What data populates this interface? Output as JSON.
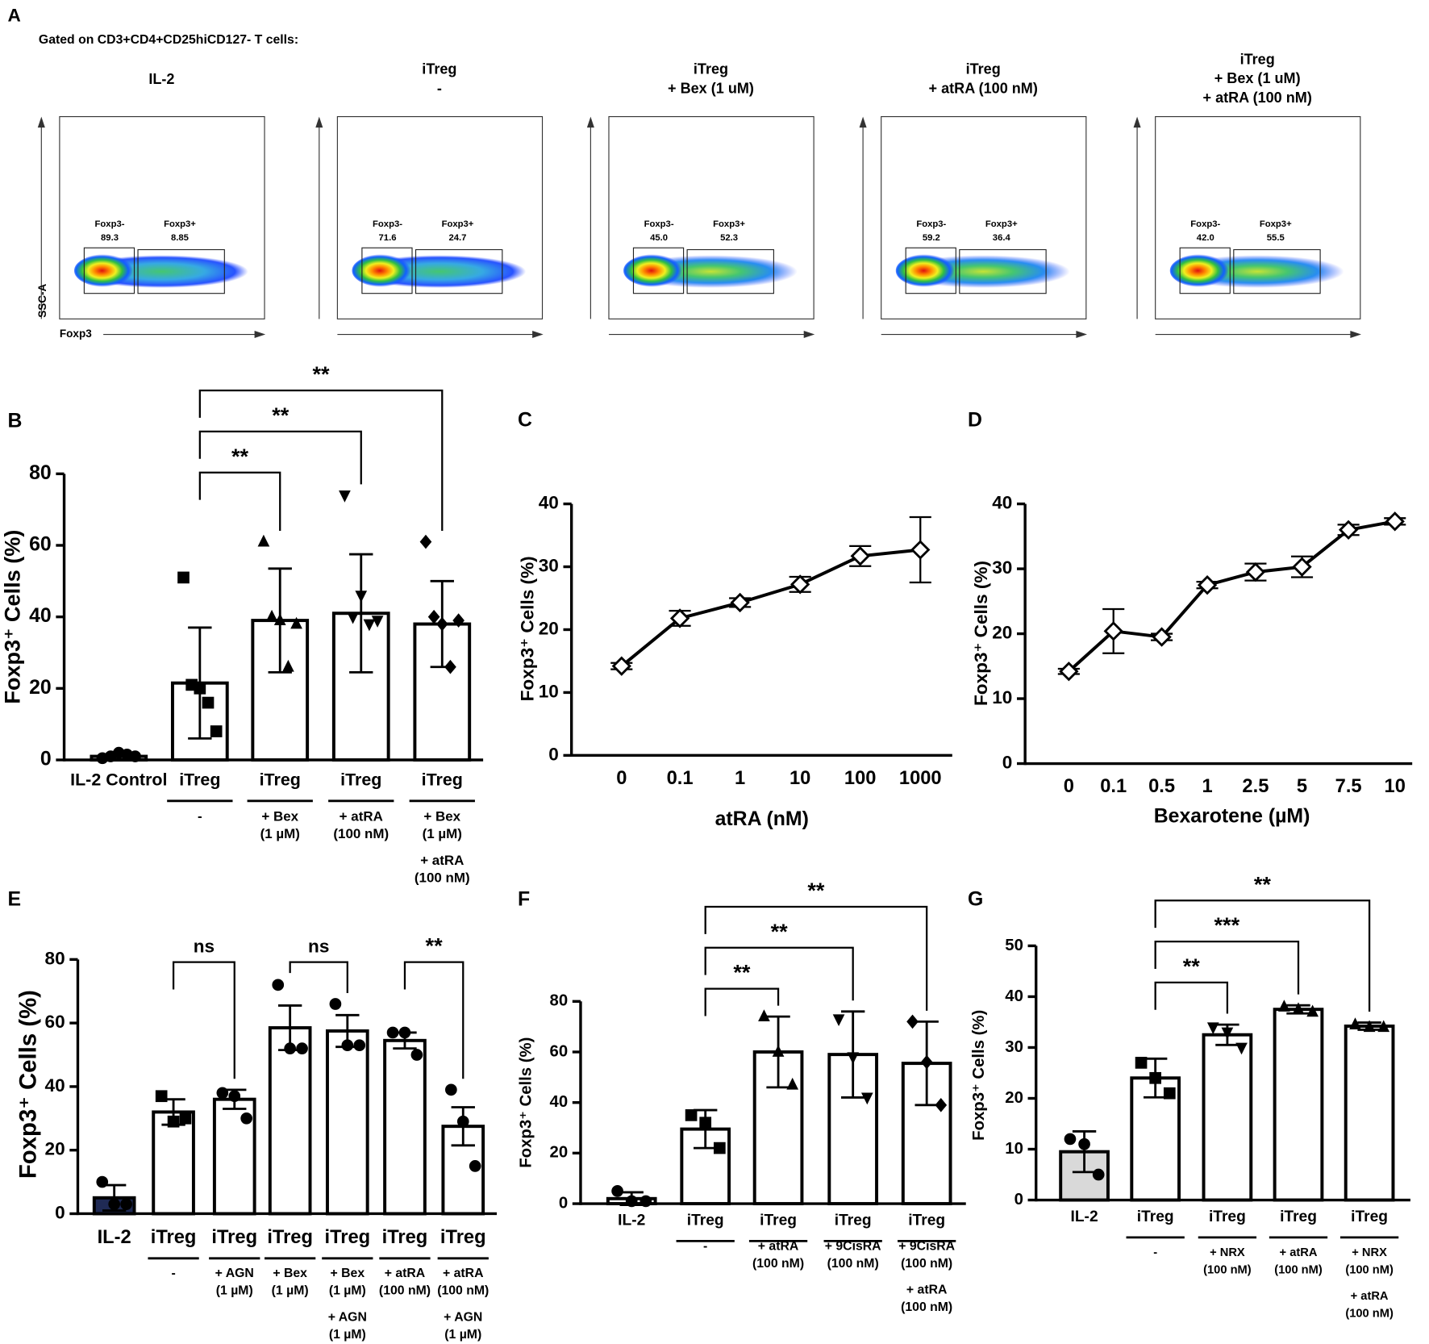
{
  "flow_panel": {
    "label": "A",
    "heading": "Gated on CD3+CD4+CD25hiCD127- T cells:",
    "y_axis_label": "SSC-A",
    "x_axis_label": "Foxp3",
    "plots": [
      {
        "title": [
          "IL-2"
        ],
        "gates": [
          {
            "name": "Foxp3-",
            "value": "89.3"
          },
          {
            "name": "Foxp3+",
            "value": "8.85"
          }
        ]
      },
      {
        "title": [
          "iTreg",
          "-"
        ],
        "gates": [
          {
            "name": "Foxp3-",
            "value": "71.6"
          },
          {
            "name": "Foxp3+",
            "value": "24.7"
          }
        ]
      },
      {
        "title": [
          "iTreg",
          "+ Bex (1 uM)"
        ],
        "gates": [
          {
            "name": "Foxp3-",
            "value": "45.0"
          },
          {
            "name": "Foxp3+",
            "value": "52.3"
          }
        ]
      },
      {
        "title": [
          "iTreg",
          "+ atRA (100 nM)"
        ],
        "gates": [
          {
            "name": "Foxp3-",
            "value": "59.2"
          },
          {
            "name": "Foxp3+",
            "value": "36.4"
          }
        ]
      },
      {
        "title": [
          "iTreg",
          "+ Bex (1 uM)",
          "+ atRA (100 nM)"
        ],
        "gates": [
          {
            "name": "Foxp3-",
            "value": "42.0"
          },
          {
            "name": "Foxp3+",
            "value": "55.5"
          }
        ]
      }
    ]
  },
  "chart_data": [
    {
      "type": "bar",
      "panel": "B",
      "ylabel": "Foxp3⁺ Cells (%)",
      "categories": [
        "IL-2 Control",
        "iTreg",
        "iTreg",
        "iTreg",
        "iTreg"
      ],
      "sublabels": [
        null,
        [
          "-"
        ],
        [
          "+ Bex",
          "(1 µM)"
        ],
        [
          "+ atRA",
          "(100 nM)"
        ],
        [
          "+ Bex",
          "(1 µM)",
          "+ atRA",
          "(100 nM)"
        ]
      ],
      "values": [
        1,
        21.5,
        39,
        41,
        38
      ],
      "errors": [
        0.8,
        15.5,
        14.5,
        16.5,
        12
      ],
      "points": [
        [
          0.5,
          1,
          2,
          1.5,
          1
        ],
        [
          51,
          21,
          20,
          16,
          8
        ],
        [
          61,
          40,
          39,
          26,
          38
        ],
        [
          74,
          40,
          46,
          38,
          39
        ],
        [
          61,
          40,
          38,
          26,
          39
        ]
      ],
      "markers": [
        "circle",
        "square",
        "triangle",
        "triangle-down",
        "diamond"
      ],
      "colors": [
        "#ffffff",
        "#ffffff",
        "#ffffff",
        "#ffffff",
        "#ffffff"
      ],
      "comparisons": [
        {
          "from": 1,
          "to": 2,
          "label": "**"
        },
        {
          "from": 1,
          "to": 3,
          "label": "**"
        },
        {
          "from": 1,
          "to": 4,
          "label": "**"
        }
      ],
      "ylim": [
        0,
        80
      ],
      "yticks": [
        0,
        20,
        40,
        60,
        80
      ]
    },
    {
      "type": "line",
      "panel": "C",
      "ylabel": "Foxp3⁺ Cells (%)",
      "xlabel": "atRA (nM)",
      "categories": [
        "0",
        "0.1",
        "1",
        "10",
        "100",
        "1000"
      ],
      "values": [
        14.2,
        21.8,
        24.3,
        27.2,
        31.7,
        32.7
      ],
      "errors": [
        0.5,
        1.2,
        0.7,
        1.2,
        1.6,
        5.2
      ],
      "ylim": [
        0,
        40
      ],
      "yticks": [
        0,
        10,
        20,
        30,
        40
      ]
    },
    {
      "type": "line",
      "panel": "D",
      "ylabel": "Foxp3⁺ Cells (%)",
      "xlabel": "Bexarotene (µM)",
      "categories": [
        "0",
        "0.1",
        "0.5",
        "1",
        "2.5",
        "5",
        "7.5",
        "10"
      ],
      "values": [
        14.2,
        20.4,
        19.5,
        27.5,
        29.5,
        30.3,
        36,
        37.3
      ],
      "errors": [
        0.4,
        3.4,
        0.5,
        0.5,
        1.3,
        1.6,
        0.8,
        0.5
      ],
      "ylim": [
        0,
        40
      ],
      "yticks": [
        0,
        10,
        20,
        30,
        40
      ]
    },
    {
      "type": "bar",
      "panel": "E",
      "ylabel": "Foxp3⁺ Cells (%)",
      "categories": [
        "IL-2",
        "iTreg",
        "iTreg",
        "iTreg",
        "iTreg",
        "iTreg",
        "iTreg"
      ],
      "sublabels": [
        null,
        [
          "-"
        ],
        [
          "+ AGN",
          "(1 µM)"
        ],
        [
          "+ Bex",
          "(1 µM)"
        ],
        [
          "+ Bex",
          "(1 µM)",
          "+ AGN",
          "(1 µM)"
        ],
        [
          "+ atRA",
          "(100 nM)"
        ],
        [
          "+ atRA",
          "(100 nM)",
          "+ AGN",
          "(1 µM)"
        ]
      ],
      "values": [
        5,
        32,
        36,
        58.5,
        57.5,
        54.5,
        27.5
      ],
      "errors": [
        4,
        4,
        3,
        7,
        5,
        2.5,
        6
      ],
      "points": [
        [
          10,
          3,
          3
        ],
        [
          37,
          29,
          30
        ],
        [
          38,
          37,
          30
        ],
        [
          72,
          52,
          52
        ],
        [
          66,
          53,
          53
        ],
        [
          57,
          57,
          50
        ],
        [
          39,
          29,
          15
        ]
      ],
      "markers": [
        "circle",
        "square",
        "circle",
        "circle",
        "circle",
        "circle",
        "circle"
      ],
      "colors": [
        "#1f2a55",
        "#ffffff",
        "#ffffff",
        "#ffffff",
        "#ffffff",
        "#ffffff",
        "#ffffff"
      ],
      "comparisons": [
        {
          "from": 1,
          "to": 2,
          "label": "ns"
        },
        {
          "from": 3,
          "to": 4,
          "label": "ns"
        },
        {
          "from": 5,
          "to": 6,
          "label": "**"
        }
      ],
      "ylim": [
        0,
        80
      ],
      "yticks": [
        0,
        20,
        40,
        60,
        80
      ]
    },
    {
      "type": "bar",
      "panel": "F",
      "ylabel": "Foxp3⁺ Cells (%)",
      "categories": [
        "IL-2",
        "iTreg",
        "iTreg",
        "iTreg",
        "iTreg"
      ],
      "sublabels": [
        null,
        [
          "-"
        ],
        [
          "+ atRA",
          "(100 nM)"
        ],
        [
          "+ 9CisRA",
          "(100 nM)"
        ],
        [
          "+ 9CisRA",
          "(100 nM)",
          "+ atRA",
          "(100 nM)"
        ]
      ],
      "values": [
        2,
        29.5,
        60,
        59,
        55.5
      ],
      "errors": [
        2.5,
        7.5,
        14,
        17,
        16.5
      ],
      "points": [
        [
          5,
          1,
          1
        ],
        [
          35,
          32,
          22
        ],
        [
          74,
          60,
          47
        ],
        [
          73,
          58,
          42
        ],
        [
          72,
          56,
          39
        ]
      ],
      "markers": [
        "circle",
        "square",
        "triangle",
        "triangle-down",
        "diamond"
      ],
      "colors": [
        "#ffffff",
        "#ffffff",
        "#ffffff",
        "#ffffff",
        "#ffffff"
      ],
      "comparisons": [
        {
          "from": 1,
          "to": 2,
          "label": "**"
        },
        {
          "from": 1,
          "to": 3,
          "label": "**"
        },
        {
          "from": 1,
          "to": 4,
          "label": "**"
        }
      ],
      "ylim": [
        0,
        80
      ],
      "yticks": [
        0,
        20,
        40,
        60,
        80
      ]
    },
    {
      "type": "bar",
      "panel": "G",
      "ylabel": "Foxp3⁺ Cells (%)",
      "categories": [
        "IL-2",
        "iTreg",
        "iTreg",
        "iTreg",
        "iTreg"
      ],
      "sublabels": [
        null,
        [
          "-"
        ],
        [
          "+ NRX",
          "(100 nM)"
        ],
        [
          "+ atRA",
          "(100 nM)"
        ],
        [
          "+ NRX",
          "(100 nM)",
          "+ atRA",
          "(100 nM)"
        ]
      ],
      "values": [
        9.5,
        24,
        32.5,
        37.5,
        34.2
      ],
      "errors": [
        4,
        3.8,
        2,
        0.8,
        0.7
      ],
      "points": [
        [
          12,
          11,
          5
        ],
        [
          27,
          24,
          21
        ],
        [
          34,
          33,
          30
        ],
        [
          38,
          37.5,
          37
        ],
        [
          34.5,
          34,
          34
        ]
      ],
      "markers": [
        "circle",
        "square",
        "triangle-down",
        "triangle",
        "triangle"
      ],
      "colors": [
        "#d9d9d9",
        "#ffffff",
        "#ffffff",
        "#ffffff",
        "#ffffff"
      ],
      "comparisons": [
        {
          "from": 1,
          "to": 2,
          "label": "**"
        },
        {
          "from": 1,
          "to": 3,
          "label": "***"
        },
        {
          "from": 1,
          "to": 4,
          "label": "**"
        }
      ],
      "ylim": [
        0,
        50
      ],
      "yticks": [
        0,
        10,
        20,
        30,
        40,
        50
      ]
    }
  ]
}
